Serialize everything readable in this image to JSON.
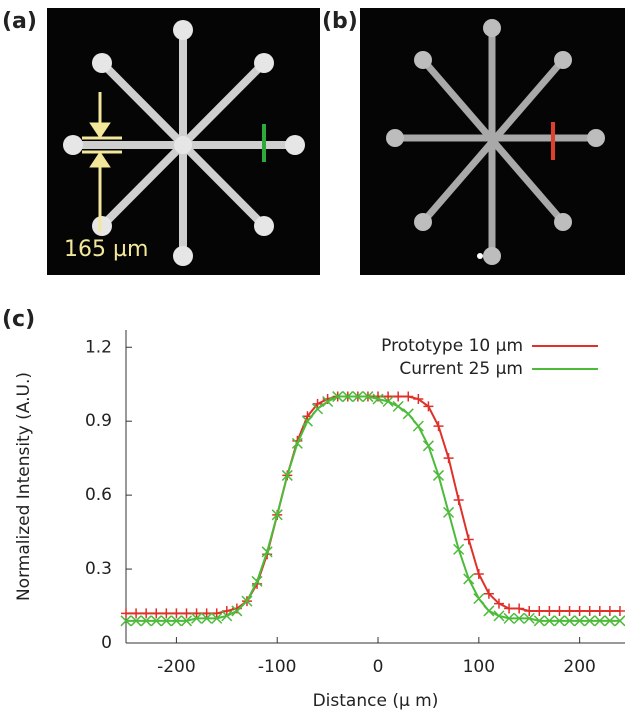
{
  "panels": [
    {
      "label": "(a)",
      "annotation": "165 µm"
    },
    {
      "label": "(b)"
    }
  ],
  "chart_data": {
    "type": "line",
    "label": "(c)",
    "x_label": "Distance (µ m)",
    "y_label": "Normalized Intensity (A.U.)",
    "xlim": [
      -250,
      245
    ],
    "ylim": [
      0,
      1.27
    ],
    "xticks": [
      -200,
      -100,
      0,
      100,
      200
    ],
    "yticks": [
      0,
      0.3,
      0.6,
      0.9,
      1.2
    ],
    "legend": "top-right",
    "x": [
      -250,
      -240,
      -230,
      -220,
      -210,
      -200,
      -190,
      -180,
      -170,
      -160,
      -150,
      -140,
      -130,
      -120,
      -110,
      -100,
      -90,
      -80,
      -70,
      -60,
      -50,
      -40,
      -30,
      -20,
      -10,
      0,
      10,
      20,
      30,
      40,
      50,
      60,
      70,
      80,
      90,
      100,
      110,
      120,
      130,
      140,
      150,
      160,
      170,
      180,
      190,
      200,
      210,
      220,
      230,
      240
    ],
    "series": [
      {
        "name": "Prototype 10 µm",
        "color": "#e0302a",
        "marker": "+",
        "values": [
          0.12,
          0.12,
          0.12,
          0.12,
          0.12,
          0.12,
          0.12,
          0.12,
          0.12,
          0.12,
          0.13,
          0.14,
          0.17,
          0.24,
          0.36,
          0.52,
          0.68,
          0.82,
          0.92,
          0.97,
          0.99,
          1.0,
          1.0,
          1.0,
          1.0,
          1.0,
          1.0,
          1.0,
          1.0,
          0.99,
          0.96,
          0.88,
          0.75,
          0.58,
          0.42,
          0.28,
          0.2,
          0.16,
          0.14,
          0.14,
          0.13,
          0.13,
          0.13,
          0.13,
          0.13,
          0.13,
          0.13,
          0.13,
          0.13,
          0.13
        ]
      },
      {
        "name": "Current 25 µm",
        "color": "#4cbb3a",
        "marker": "x",
        "values": [
          0.09,
          0.09,
          0.09,
          0.09,
          0.09,
          0.09,
          0.09,
          0.1,
          0.1,
          0.1,
          0.11,
          0.13,
          0.17,
          0.25,
          0.37,
          0.52,
          0.68,
          0.81,
          0.9,
          0.95,
          0.98,
          1.0,
          1.0,
          1.0,
          1.0,
          0.99,
          0.98,
          0.96,
          0.93,
          0.88,
          0.8,
          0.68,
          0.53,
          0.38,
          0.26,
          0.18,
          0.13,
          0.11,
          0.1,
          0.1,
          0.1,
          0.09,
          0.09,
          0.09,
          0.09,
          0.09,
          0.09,
          0.09,
          0.09,
          0.09
        ]
      }
    ]
  }
}
